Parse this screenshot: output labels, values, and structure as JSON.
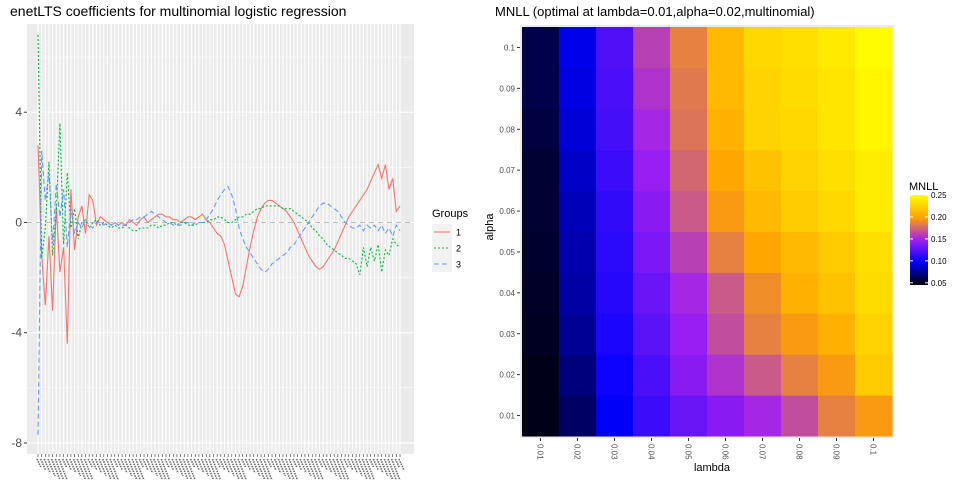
{
  "colors": {
    "panel_bg": "#ebebeb",
    "grid_major": "#ffffff",
    "group_1": "#F8766D",
    "group_2": "#00BA38",
    "group_3": "#619CFF",
    "zero_line": "#bdbdbd",
    "heat_low": "#000000",
    "heat_mid1": "#0000ff",
    "heat_mid2": "#a020f0",
    "heat_mid3": "#ffa500",
    "heat_high": "#ffff00"
  },
  "chart_data": [
    {
      "type": "line",
      "title": "enetLTS coefficients for multinomial logistic regression",
      "xlabel": "",
      "ylabel": "",
      "ylim": [
        -8.4,
        7.2
      ],
      "y_ticks": [
        4,
        0,
        -4,
        -8
      ],
      "y_tick_labels": [
        "4",
        "0",
        "-4",
        "-8"
      ],
      "zero_line": "dashed",
      "x_count": 100,
      "x_tick_labels": "dense, overlapping, illegible",
      "legend": {
        "title": "Groups",
        "placement": "right"
      },
      "series": [
        {
          "name": "1",
          "line_style": "solid",
          "values": [
            2.8,
            -1.2,
            -3.0,
            -0.5,
            -3.2,
            0.6,
            -1.8,
            -0.9,
            -4.4,
            1.2,
            -1.0,
            0.2,
            0.6,
            -0.4,
            1.0,
            0.8,
            -0.1,
            0.2,
            0.1,
            0.0,
            -0.1,
            0.0,
            -0.1,
            0.0,
            -0.1,
            0.1,
            0.0,
            -0.1,
            0.1,
            0.2,
            0.0,
            0.1,
            0.2,
            0.3,
            0.3,
            0.2,
            0.2,
            0.1,
            0.1,
            0.0,
            0.1,
            0.2,
            0.2,
            0.1,
            0.2,
            0.3,
            0.1,
            0.0,
            -0.2,
            -0.4,
            -0.5,
            -0.8,
            -1.4,
            -2.0,
            -2.6,
            -2.7,
            -2.3,
            -1.6,
            -0.9,
            -0.3,
            0.2,
            0.5,
            0.7,
            0.8,
            0.8,
            0.7,
            0.6,
            0.5,
            0.4,
            0.2,
            0.0,
            -0.3,
            -0.6,
            -0.9,
            -1.2,
            -1.4,
            -1.6,
            -1.7,
            -1.6,
            -1.4,
            -1.2,
            -1.0,
            -0.7,
            -0.4,
            -0.1,
            0.2,
            0.4,
            0.6,
            0.8,
            1.0,
            1.2,
            1.5,
            1.8,
            2.1,
            1.6,
            2.1,
            1.2,
            1.6,
            0.4,
            0.6
          ]
        },
        {
          "name": "2",
          "line_style": "dotted",
          "values": [
            6.8,
            -1.3,
            -0.2,
            2.2,
            -1.2,
            0.4,
            3.6,
            -0.8,
            1.8,
            -0.2,
            0.5,
            -0.6,
            0.0,
            0.1,
            -0.2,
            0.0,
            0.1,
            -0.1,
            0.0,
            -0.1,
            -0.2,
            -0.1,
            -0.2,
            -0.2,
            -0.1,
            -0.2,
            -0.3,
            -0.3,
            -0.2,
            -0.2,
            -0.2,
            -0.1,
            -0.1,
            -0.2,
            -0.1,
            -0.1,
            0.0,
            0.0,
            -0.1,
            0.0,
            0.0,
            -0.1,
            -0.1,
            -0.1,
            0.0,
            0.0,
            0.0,
            0.1,
            0.1,
            0.2,
            0.2,
            0.1,
            0.0,
            0.0,
            0.1,
            0.2,
            0.2,
            0.3,
            0.3,
            0.4,
            0.5,
            0.5,
            0.6,
            0.6,
            0.6,
            0.6,
            0.6,
            0.5,
            0.5,
            0.5,
            0.4,
            0.3,
            0.2,
            0.1,
            0.0,
            -0.2,
            -0.3,
            -0.5,
            -0.6,
            -0.8,
            -0.9,
            -1.0,
            -1.1,
            -1.2,
            -1.3,
            -1.3,
            -1.4,
            -1.5,
            -1.9,
            -0.9,
            -1.6,
            -0.9,
            -1.4,
            -0.8,
            -1.8,
            -1.0,
            -1.2,
            -0.6,
            -0.8,
            -0.9
          ]
        },
        {
          "name": "3",
          "line_style": "dashed",
          "values": [
            -7.7,
            2.6,
            0.8,
            1.8,
            -0.8,
            1.4,
            0.2,
            1.2,
            -0.9,
            0.5,
            -0.4,
            0.0,
            -0.2,
            0.1,
            -0.1,
            -0.2,
            0.0,
            0.0,
            -0.1,
            0.0,
            -0.1,
            0.0,
            -0.1,
            -0.1,
            -0.1,
            0.0,
            0.1,
            0.1,
            0.2,
            0.2,
            0.3,
            0.4,
            0.3,
            0.2,
            0.1,
            0.0,
            0.0,
            -0.1,
            -0.1,
            -0.1,
            0.0,
            0.0,
            -0.1,
            0.0,
            0.0,
            0.0,
            0.1,
            0.3,
            0.5,
            0.8,
            1.0,
            1.2,
            1.3,
            1.0,
            0.5,
            -0.2,
            -0.6,
            -0.9,
            -1.1,
            -1.3,
            -1.5,
            -1.7,
            -1.8,
            -1.7,
            -1.5,
            -1.4,
            -1.3,
            -1.2,
            -1.1,
            -0.9,
            -0.8,
            -0.6,
            -0.4,
            -0.2,
            0.0,
            0.2,
            0.4,
            0.6,
            0.7,
            0.7,
            0.6,
            0.5,
            0.4,
            0.2,
            0.0,
            -0.1,
            -0.2,
            -0.2,
            -0.1,
            -0.3,
            -0.1,
            -0.2,
            -0.1,
            -0.3,
            -0.1,
            -0.4,
            -0.2,
            -0.5,
            -0.1,
            -0.3
          ]
        }
      ]
    },
    {
      "type": "heatmap",
      "title": "MNLL (optimal at lambda=0.01,alpha=0.02,multinomial)",
      "xlabel": "lambda",
      "ylabel": "alpha",
      "x_categories": [
        "0.01",
        "0.02",
        "0.03",
        "0.04",
        "0.05",
        "0.06",
        "0.07",
        "0.08",
        "0.09",
        "0.1"
      ],
      "y_categories": [
        "0.01",
        "0.02",
        "0.03",
        "0.04",
        "0.05",
        "0.06",
        "0.07",
        "0.08",
        "0.09",
        "0.1"
      ],
      "values_by_alpha": [
        [
          0.05,
          0.065,
          0.095,
          0.115,
          0.13,
          0.14,
          0.15,
          0.165,
          0.185,
          0.195
        ],
        [
          0.05,
          0.07,
          0.1,
          0.12,
          0.14,
          0.155,
          0.17,
          0.185,
          0.195,
          0.22
        ],
        [
          0.052,
          0.075,
          0.105,
          0.125,
          0.145,
          0.165,
          0.185,
          0.195,
          0.205,
          0.225
        ],
        [
          0.053,
          0.078,
          0.108,
          0.13,
          0.15,
          0.17,
          0.19,
          0.205,
          0.215,
          0.23
        ],
        [
          0.054,
          0.08,
          0.11,
          0.135,
          0.16,
          0.185,
          0.2,
          0.21,
          0.22,
          0.232
        ],
        [
          0.055,
          0.082,
          0.112,
          0.14,
          0.17,
          0.195,
          0.21,
          0.22,
          0.228,
          0.24
        ],
        [
          0.055,
          0.085,
          0.115,
          0.145,
          0.175,
          0.2,
          0.215,
          0.225,
          0.232,
          0.24
        ],
        [
          0.058,
          0.088,
          0.118,
          0.15,
          0.18,
          0.205,
          0.225,
          0.228,
          0.235,
          0.245
        ],
        [
          0.06,
          0.09,
          0.12,
          0.155,
          0.182,
          0.21,
          0.225,
          0.23,
          0.235,
          0.245
        ],
        [
          0.06,
          0.092,
          0.122,
          0.16,
          0.185,
          0.21,
          0.228,
          0.232,
          0.238,
          0.248
        ]
      ],
      "legend": {
        "title": "MNLL",
        "placement": "right",
        "ticks": [
          0.25,
          0.2,
          0.15,
          0.1,
          0.05
        ],
        "tick_labels": [
          "0.25",
          "0.20",
          "0.15",
          "0.10",
          "0.05"
        ],
        "range": [
          0.045,
          0.25
        ]
      }
    }
  ]
}
